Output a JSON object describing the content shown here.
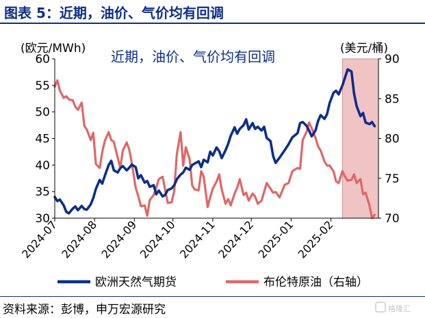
{
  "header": {
    "title": "图表 5：近期，油价、气价均有回调"
  },
  "footer": {
    "source": "资料来源：彭博，申万宏源研究"
  },
  "watermark": {
    "text": "格隆汇"
  },
  "chart_data": {
    "type": "line",
    "title": "近期，油价、气价均有回调",
    "left_axis": {
      "unit_label": "(欧元/MWh)",
      "min": 30,
      "max": 60,
      "ticks": [
        "30",
        "35",
        "40",
        "45",
        "50",
        "55",
        "60"
      ]
    },
    "right_axis": {
      "unit_label": "(美元/桶)",
      "min": 70,
      "max": 90,
      "ticks": [
        "70",
        "75",
        "80",
        "85",
        "90"
      ]
    },
    "x_ticks": [
      "2024-07",
      "2024-08",
      "2024-09",
      "2024-10",
      "2024-11",
      "2024-12",
      "2025-01",
      "2025-02"
    ],
    "x_range": [
      "2024-07-01",
      "2025-03-10"
    ],
    "highlight": {
      "from": "2025-02-10",
      "to": "2025-03-10",
      "color": "#f1c4c4"
    },
    "legend_position": "bottom",
    "series": [
      {
        "name": "欧洲天然气期货",
        "axis": "left",
        "color": "#0b2d8e",
        "x": [
          "2024-07-01",
          "2024-07-03",
          "2024-07-05",
          "2024-07-08",
          "2024-07-10",
          "2024-07-12",
          "2024-07-15",
          "2024-07-17",
          "2024-07-19",
          "2024-07-22",
          "2024-07-24",
          "2024-07-26",
          "2024-07-29",
          "2024-07-31",
          "2024-08-02",
          "2024-08-05",
          "2024-08-07",
          "2024-08-09",
          "2024-08-12",
          "2024-08-14",
          "2024-08-16",
          "2024-08-19",
          "2024-08-21",
          "2024-08-23",
          "2024-08-26",
          "2024-08-28",
          "2024-08-30",
          "2024-09-02",
          "2024-09-04",
          "2024-09-06",
          "2024-09-09",
          "2024-09-11",
          "2024-09-13",
          "2024-09-16",
          "2024-09-18",
          "2024-09-20",
          "2024-09-23",
          "2024-09-25",
          "2024-09-27",
          "2024-09-30",
          "2024-10-02",
          "2024-10-04",
          "2024-10-07",
          "2024-10-09",
          "2024-10-11",
          "2024-10-14",
          "2024-10-16",
          "2024-10-18",
          "2024-10-21",
          "2024-10-23",
          "2024-10-25",
          "2024-10-28",
          "2024-10-30",
          "2024-11-01",
          "2024-11-04",
          "2024-11-06",
          "2024-11-08",
          "2024-11-11",
          "2024-11-13",
          "2024-11-15",
          "2024-11-18",
          "2024-11-20",
          "2024-11-22",
          "2024-11-25",
          "2024-11-27",
          "2024-11-29",
          "2024-12-02",
          "2024-12-04",
          "2024-12-06",
          "2024-12-09",
          "2024-12-11",
          "2024-12-13",
          "2024-12-16",
          "2024-12-18",
          "2024-12-20",
          "2024-12-23",
          "2024-12-27",
          "2024-12-30",
          "2025-01-02",
          "2025-01-06",
          "2025-01-08",
          "2025-01-10",
          "2025-01-13",
          "2025-01-15",
          "2025-01-17",
          "2025-01-20",
          "2025-01-22",
          "2025-01-24",
          "2025-01-27",
          "2025-01-29",
          "2025-01-31",
          "2025-02-03",
          "2025-02-05",
          "2025-02-07",
          "2025-02-10",
          "2025-02-12",
          "2025-02-14",
          "2025-02-17",
          "2025-02-19",
          "2025-02-21",
          "2025-02-24",
          "2025-02-26",
          "2025-02-28",
          "2025-03-03",
          "2025-03-05",
          "2025-03-07"
        ],
        "values": [
          34.0,
          33.2,
          33.5,
          32.4,
          31.2,
          30.9,
          31.8,
          32.2,
          31.5,
          32.3,
          31.7,
          31.6,
          32.6,
          33.8,
          35.5,
          37.2,
          36.5,
          38.0,
          40.0,
          40.8,
          39.0,
          38.6,
          39.4,
          39.8,
          39.0,
          39.5,
          40.1,
          39.6,
          37.5,
          38.1,
          36.7,
          37.0,
          35.9,
          36.2,
          34.5,
          35.2,
          34.1,
          34.4,
          35.3,
          35.6,
          36.2,
          37.3,
          38.2,
          38.6,
          39.5,
          39.1,
          40.0,
          40.3,
          40.7,
          39.6,
          41.0,
          40.5,
          42.5,
          41.8,
          43.3,
          42.6,
          41.3,
          42.8,
          44.0,
          45.5,
          47.1,
          45.9,
          46.8,
          47.5,
          48.6,
          46.7,
          47.9,
          46.8,
          47.2,
          46.5,
          47.2,
          45.1,
          44.5,
          41.7,
          40.4,
          41.4,
          42.8,
          43.9,
          45.2,
          46.0,
          47.9,
          48.1,
          47.4,
          46.5,
          45.4,
          46.5,
          48.3,
          49.4,
          48.7,
          49.6,
          51.7,
          53.6,
          54.0,
          53.3,
          55.0,
          56.5,
          58.0,
          57.6,
          53.5,
          51.1,
          49.2,
          49.8,
          48.0,
          47.7,
          48.1,
          47.3
        ]
      },
      {
        "name": "布伦特原油（右轴）",
        "axis": "right",
        "color": "#e06666",
        "x": [
          "2024-07-01",
          "2024-07-03",
          "2024-07-05",
          "2024-07-08",
          "2024-07-10",
          "2024-07-12",
          "2024-07-15",
          "2024-07-17",
          "2024-07-19",
          "2024-07-22",
          "2024-07-24",
          "2024-07-26",
          "2024-07-29",
          "2024-07-31",
          "2024-08-02",
          "2024-08-05",
          "2024-08-07",
          "2024-08-09",
          "2024-08-12",
          "2024-08-14",
          "2024-08-16",
          "2024-08-19",
          "2024-08-21",
          "2024-08-23",
          "2024-08-26",
          "2024-08-28",
          "2024-08-30",
          "2024-09-02",
          "2024-09-04",
          "2024-09-06",
          "2024-09-09",
          "2024-09-11",
          "2024-09-13",
          "2024-09-16",
          "2024-09-18",
          "2024-09-20",
          "2024-09-23",
          "2024-09-25",
          "2024-09-27",
          "2024-09-30",
          "2024-10-02",
          "2024-10-04",
          "2024-10-07",
          "2024-10-09",
          "2024-10-11",
          "2024-10-14",
          "2024-10-16",
          "2024-10-18",
          "2024-10-21",
          "2024-10-23",
          "2024-10-25",
          "2024-10-28",
          "2024-10-30",
          "2024-11-01",
          "2024-11-04",
          "2024-11-06",
          "2024-11-08",
          "2024-11-11",
          "2024-11-13",
          "2024-11-15",
          "2024-11-18",
          "2024-11-20",
          "2024-11-22",
          "2024-11-25",
          "2024-11-27",
          "2024-11-29",
          "2024-12-02",
          "2024-12-04",
          "2024-12-06",
          "2024-12-09",
          "2024-12-11",
          "2024-12-13",
          "2024-12-16",
          "2024-12-18",
          "2024-12-20",
          "2024-12-23",
          "2024-12-27",
          "2024-12-30",
          "2025-01-02",
          "2025-01-06",
          "2025-01-08",
          "2025-01-10",
          "2025-01-13",
          "2025-01-15",
          "2025-01-17",
          "2025-01-20",
          "2025-01-22",
          "2025-01-24",
          "2025-01-27",
          "2025-01-29",
          "2025-01-31",
          "2025-02-03",
          "2025-02-05",
          "2025-02-07",
          "2025-02-10",
          "2025-02-12",
          "2025-02-14",
          "2025-02-17",
          "2025-02-19",
          "2025-02-21",
          "2025-02-24",
          "2025-02-26",
          "2025-02-28",
          "2025-03-03",
          "2025-03-05",
          "2025-03-07"
        ],
        "values": [
          86.5,
          87.3,
          86.0,
          85.1,
          85.3,
          84.9,
          84.8,
          84.0,
          83.6,
          84.5,
          81.6,
          81.1,
          79.8,
          80.7,
          76.8,
          76.3,
          78.3,
          79.7,
          80.8,
          79.8,
          79.6,
          77.6,
          76.3,
          78.5,
          79.5,
          78.6,
          76.9,
          73.8,
          72.8,
          71.5,
          71.6,
          70.3,
          72.3,
          72.9,
          73.8,
          74.9,
          75.2,
          73.5,
          71.9,
          72.0,
          73.4,
          78.0,
          80.8,
          76.6,
          78.9,
          77.4,
          74.1,
          73.6,
          73.5,
          75.9,
          75.2,
          71.4,
          72.6,
          73.7,
          74.6,
          75.5,
          73.6,
          71.8,
          72.4,
          71.6,
          73.1,
          73.8,
          74.9,
          72.9,
          73.2,
          72.2,
          73.1,
          72.7,
          71.8,
          72.2,
          73.3,
          74.4,
          73.7,
          73.2,
          73.3,
          72.6,
          74.2,
          74.4,
          75.9,
          76.3,
          76.2,
          79.8,
          80.8,
          82.0,
          81.3,
          80.1,
          79.0,
          78.5,
          77.1,
          76.6,
          76.6,
          75.9,
          74.6,
          74.4,
          75.9,
          75.2,
          74.7,
          74.8,
          75.5,
          74.4,
          74.9,
          73.0,
          73.2,
          71.6,
          70.0,
          70.4
        ]
      }
    ]
  }
}
